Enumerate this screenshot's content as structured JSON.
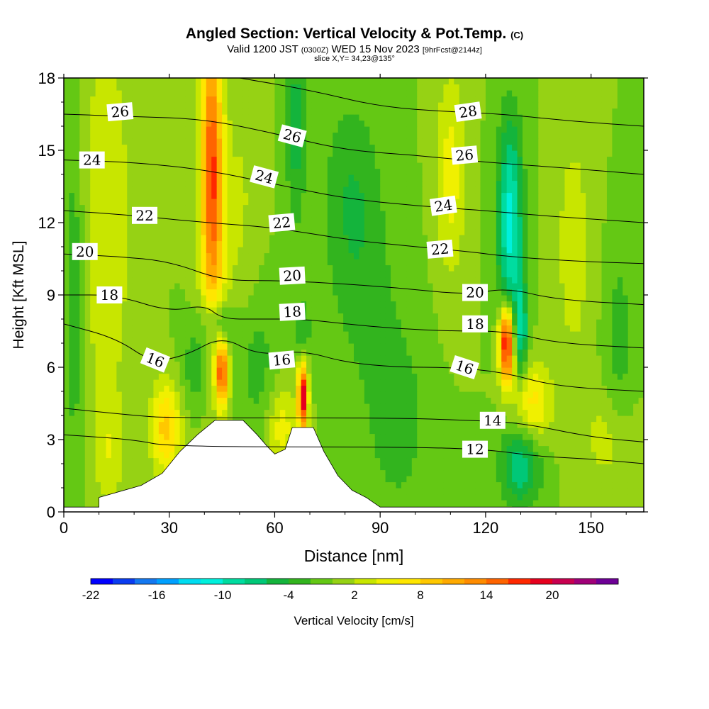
{
  "title": {
    "main": "Angled Section: Vertical Velocity & Pot.Temp.",
    "copyright": "(C)",
    "valid_prefix": "Valid 1200 JST",
    "valid_utc": "(0300Z)",
    "valid_date": "WED 15 Nov 2023",
    "forecast": "[9hrFcst@2144z]",
    "slice": "slice X,Y= 34,23@135°"
  },
  "chart_data": {
    "type": "heatmap",
    "xlabel": "Distance [nm]",
    "ylabel": "Height [Kft MSL]",
    "xlim": [
      0,
      165
    ],
    "ylim": [
      0,
      18
    ],
    "x_ticks": [
      0,
      30,
      60,
      90,
      120,
      150
    ],
    "y_ticks": [
      0,
      3,
      6,
      9,
      12,
      15,
      18
    ],
    "colorbar": {
      "label": "Vertical Velocity [cm/s]",
      "tick_labels": [
        "-22",
        "-16",
        "-10",
        "-4",
        "2",
        "8",
        "14",
        "20"
      ],
      "bins": [
        -22,
        -20,
        -18,
        -16,
        -14,
        -12,
        -10,
        -8,
        -6,
        -4,
        -2,
        0,
        2,
        4,
        6,
        8,
        10,
        12,
        14,
        16,
        18,
        20,
        22,
        24
      ],
      "colors": [
        "#0000ff",
        "#0a3cf0",
        "#1478f0",
        "#00a0ff",
        "#00dcf0",
        "#00f0dc",
        "#00dca0",
        "#00c878",
        "#14b43c",
        "#32b41e",
        "#64c814",
        "#96d214",
        "#c8e600",
        "#f0f000",
        "#ffe600",
        "#ffc800",
        "#ffaa00",
        "#ff8c00",
        "#ff6400",
        "#ff2800",
        "#e6001e",
        "#c80050",
        "#a00078",
        "#6e0096"
      ]
    },
    "background_value_cms": 0,
    "velocity_features": [
      {
        "x": 3,
        "y": 9,
        "sx": 2,
        "sy": 5,
        "value": -4
      },
      {
        "x": 12,
        "y": 12,
        "sx": 5,
        "sy": 6,
        "value": 4
      },
      {
        "x": 29,
        "y": 3.5,
        "sx": 3,
        "sy": 1.3,
        "value": 9
      },
      {
        "x": 13,
        "y": 2.5,
        "sx": 3,
        "sy": 1.5,
        "value": 3
      },
      {
        "x": 42,
        "y": 15,
        "sx": 2,
        "sy": 4,
        "value": 13
      },
      {
        "x": 43,
        "y": 11,
        "sx": 3,
        "sy": 4,
        "value": 6
      },
      {
        "x": 44,
        "y": 7.8,
        "sx": 3,
        "sy": 0.8,
        "value": -7
      },
      {
        "x": 45,
        "y": 5.8,
        "sx": 1.2,
        "sy": 1,
        "value": 15
      },
      {
        "x": 38,
        "y": 6,
        "sx": 3,
        "sy": 1.2,
        "value": -4
      },
      {
        "x": 55,
        "y": 6,
        "sx": 4,
        "sy": 2,
        "value": -3
      },
      {
        "x": 51,
        "y": 13,
        "sx": 3,
        "sy": 4,
        "value": 2
      },
      {
        "x": 68,
        "y": 4.8,
        "sx": 1,
        "sy": 1,
        "value": 20
      },
      {
        "x": 68,
        "y": 7.5,
        "sx": 1.5,
        "sy": 1,
        "value": -4
      },
      {
        "x": 62,
        "y": 3.5,
        "sx": 3,
        "sy": 1.3,
        "value": 5
      },
      {
        "x": 66,
        "y": 16,
        "sx": 2,
        "sy": 3,
        "value": -5
      },
      {
        "x": 82,
        "y": 13,
        "sx": 6,
        "sy": 3,
        "value": -4
      },
      {
        "x": 88,
        "y": 8,
        "sx": 8,
        "sy": 3,
        "value": -2
      },
      {
        "x": 95,
        "y": 3.5,
        "sx": 6,
        "sy": 2.5,
        "value": -3
      },
      {
        "x": 110,
        "y": 14,
        "sx": 3,
        "sy": 3,
        "value": 5
      },
      {
        "x": 127,
        "y": 12,
        "sx": 2.5,
        "sy": 3,
        "value": -11
      },
      {
        "x": 126,
        "y": 7,
        "sx": 1.5,
        "sy": 1.1,
        "value": 21
      },
      {
        "x": 130,
        "y": 7.5,
        "sx": 1.5,
        "sy": 1.5,
        "value": -8
      },
      {
        "x": 133,
        "y": 4.5,
        "sx": 4,
        "sy": 1.2,
        "value": 7
      },
      {
        "x": 130,
        "y": 2,
        "sx": 4,
        "sy": 1.2,
        "value": -8
      },
      {
        "x": 145,
        "y": 11,
        "sx": 4,
        "sy": 4,
        "value": 3
      },
      {
        "x": 158,
        "y": 7,
        "sx": 3,
        "sy": 3,
        "value": -3
      },
      {
        "x": 155,
        "y": 3,
        "sx": 5,
        "sy": 1.5,
        "value": 3
      }
    ],
    "theta_contours": [
      {
        "value": 12,
        "points": [
          [
            0,
            3.2
          ],
          [
            20,
            3.0
          ],
          [
            30,
            2.7
          ],
          [
            95,
            2.7
          ],
          [
            120,
            2.6
          ],
          [
            135,
            2.3
          ],
          [
            150,
            2.2
          ],
          [
            165,
            2.0
          ]
        ]
      },
      {
        "value": 14,
        "points": [
          [
            0,
            4.3
          ],
          [
            20,
            4.0
          ],
          [
            30,
            3.9
          ],
          [
            95,
            3.9
          ],
          [
            115,
            3.8
          ],
          [
            130,
            3.7
          ],
          [
            150,
            3.1
          ],
          [
            165,
            2.9
          ]
        ]
      },
      {
        "value": 16,
        "points": [
          [
            0,
            7.8
          ],
          [
            15,
            7.2
          ],
          [
            25,
            6.2
          ],
          [
            35,
            6.5
          ],
          [
            45,
            7.3
          ],
          [
            55,
            6.5
          ],
          [
            68,
            6.7
          ],
          [
            80,
            6.2
          ],
          [
            95,
            6.0
          ],
          [
            110,
            6.0
          ],
          [
            125,
            5.8
          ],
          [
            140,
            5.2
          ],
          [
            165,
            5.0
          ]
        ]
      },
      {
        "value": 18,
        "points": [
          [
            0,
            9.0
          ],
          [
            15,
            9.0
          ],
          [
            30,
            8.3
          ],
          [
            40,
            8.6
          ],
          [
            45,
            8.0
          ],
          [
            55,
            8.0
          ],
          [
            68,
            8.0
          ],
          [
            80,
            7.8
          ],
          [
            95,
            7.6
          ],
          [
            110,
            7.5
          ],
          [
            126,
            7.5
          ],
          [
            140,
            7.0
          ],
          [
            165,
            6.8
          ]
        ]
      },
      {
        "value": 20,
        "points": [
          [
            0,
            10.7
          ],
          [
            15,
            10.6
          ],
          [
            30,
            10.4
          ],
          [
            45,
            9.6
          ],
          [
            60,
            9.6
          ],
          [
            75,
            9.5
          ],
          [
            95,
            9.3
          ],
          [
            115,
            9.0
          ],
          [
            126,
            9.3
          ],
          [
            140,
            8.8
          ],
          [
            165,
            8.6
          ]
        ]
      },
      {
        "value": 22,
        "points": [
          [
            0,
            12.5
          ],
          [
            20,
            12.3
          ],
          [
            40,
            12.0
          ],
          [
            60,
            11.8
          ],
          [
            80,
            11.3
          ],
          [
            100,
            11.0
          ],
          [
            115,
            10.8
          ],
          [
            126,
            10.6
          ],
          [
            145,
            10.4
          ],
          [
            165,
            10.3
          ]
        ]
      },
      {
        "value": 24,
        "points": [
          [
            0,
            14.6
          ],
          [
            20,
            14.5
          ],
          [
            40,
            14.2
          ],
          [
            60,
            13.6
          ],
          [
            80,
            13.0
          ],
          [
            100,
            12.7
          ],
          [
            120,
            12.5
          ],
          [
            135,
            12.3
          ],
          [
            165,
            12.0
          ]
        ]
      },
      {
        "value": 26,
        "points": [
          [
            0,
            16.5
          ],
          [
            20,
            16.4
          ],
          [
            40,
            16.3
          ],
          [
            60,
            15.7
          ],
          [
            80,
            15.0
          ],
          [
            100,
            14.8
          ],
          [
            120,
            14.5
          ],
          [
            140,
            14.3
          ],
          [
            165,
            14.0
          ]
        ]
      },
      {
        "value": 28,
        "points": [
          [
            50,
            18.0
          ],
          [
            70,
            17.5
          ],
          [
            90,
            16.8
          ],
          [
            110,
            16.6
          ],
          [
            125,
            16.5
          ],
          [
            145,
            16.2
          ],
          [
            165,
            16.0
          ]
        ]
      }
    ],
    "contour_labels": [
      {
        "text": "12",
        "x": 117,
        "y": 2.6,
        "angle": 0
      },
      {
        "text": "14",
        "x": 122,
        "y": 3.8,
        "angle": 0
      },
      {
        "text": "16",
        "x": 26,
        "y": 6.3,
        "angle": 22
      },
      {
        "text": "16",
        "x": 62,
        "y": 6.3,
        "angle": -5
      },
      {
        "text": "16",
        "x": 114,
        "y": 6.0,
        "angle": 18
      },
      {
        "text": "18",
        "x": 13,
        "y": 9.0,
        "angle": 0
      },
      {
        "text": "18",
        "x": 65,
        "y": 8.3,
        "angle": -3
      },
      {
        "text": "18",
        "x": 117,
        "y": 7.8,
        "angle": 0
      },
      {
        "text": "20",
        "x": 6,
        "y": 10.8,
        "angle": 0
      },
      {
        "text": "20",
        "x": 65,
        "y": 9.8,
        "angle": -3
      },
      {
        "text": "20",
        "x": 117,
        "y": 9.1,
        "angle": 0
      },
      {
        "text": "22",
        "x": 23,
        "y": 12.3,
        "angle": 0
      },
      {
        "text": "22",
        "x": 62,
        "y": 12.0,
        "angle": -5
      },
      {
        "text": "22",
        "x": 107,
        "y": 10.9,
        "angle": -5
      },
      {
        "text": "24",
        "x": 8,
        "y": 14.6,
        "angle": 0
      },
      {
        "text": "24",
        "x": 57,
        "y": 13.9,
        "angle": 15
      },
      {
        "text": "24",
        "x": 108,
        "y": 12.7,
        "angle": -8
      },
      {
        "text": "26",
        "x": 16,
        "y": 16.6,
        "angle": -5
      },
      {
        "text": "26",
        "x": 65,
        "y": 15.6,
        "angle": 15
      },
      {
        "text": "26",
        "x": 114,
        "y": 14.8,
        "angle": -5
      },
      {
        "text": "28",
        "x": 115,
        "y": 16.6,
        "angle": -8
      }
    ],
    "terrain_profile": [
      [
        0,
        0.2
      ],
      [
        10,
        0.2
      ],
      [
        10,
        0.6
      ],
      [
        22,
        1.1
      ],
      [
        28,
        1.6
      ],
      [
        33,
        2.5
      ],
      [
        38,
        3.2
      ],
      [
        43,
        3.8
      ],
      [
        51,
        3.8
      ],
      [
        55,
        3.2
      ],
      [
        58,
        2.7
      ],
      [
        60,
        2.4
      ],
      [
        63,
        2.6
      ],
      [
        65,
        3.5
      ],
      [
        71,
        3.5
      ],
      [
        74,
        2.5
      ],
      [
        78,
        1.5
      ],
      [
        82,
        0.9
      ],
      [
        86,
        0.6
      ],
      [
        89,
        0.3
      ],
      [
        90,
        0.2
      ],
      [
        165,
        0.2
      ]
    ]
  }
}
